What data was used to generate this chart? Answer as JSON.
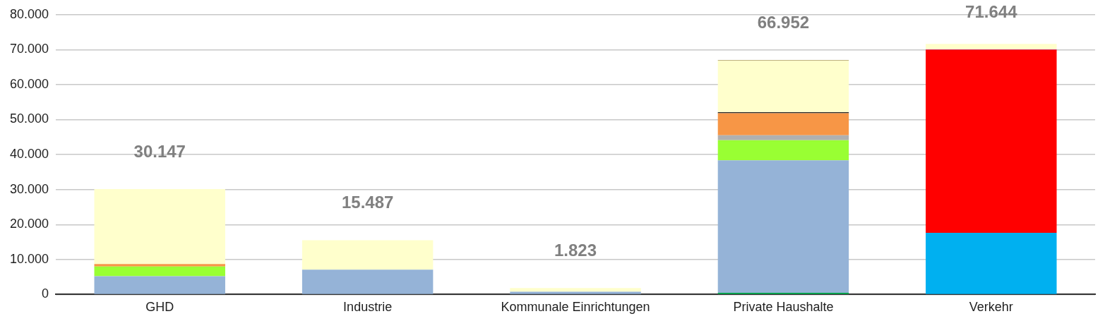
{
  "chart_data": {
    "type": "bar",
    "stacked": true,
    "grid": "y",
    "legend": false,
    "categories": [
      "GHD",
      "Industrie",
      "Kommunale Einrichtungen",
      "Private Haushalte",
      "Verkehr"
    ],
    "series": [
      {
        "color": "#00b050",
        "values": [
          null,
          null,
          null,
          500,
          null
        ]
      },
      {
        "color": "#95b3d7",
        "values": [
          5200,
          7100,
          800,
          37860,
          null
        ]
      },
      {
        "color": "#00b0f0",
        "values": [
          null,
          null,
          null,
          null,
          17640
        ]
      },
      {
        "color": "#ff0000",
        "values": [
          null,
          null,
          null,
          null,
          52300
        ]
      },
      {
        "color": "#c00060",
        "values": [
          null,
          null,
          null,
          null,
          150
        ]
      },
      {
        "color": "#99ff33",
        "values": [
          2800,
          null,
          null,
          5740,
          null
        ]
      },
      {
        "color": "#b0b0b0",
        "values": [
          null,
          null,
          null,
          1400,
          null
        ]
      },
      {
        "color": "#f79646",
        "values": [
          700,
          null,
          null,
          6300,
          null
        ]
      },
      {
        "color": "#262626",
        "values": [
          null,
          null,
          null,
          300,
          null
        ]
      },
      {
        "color": "#ffffcc",
        "values": [
          21447,
          8387,
          1023,
          14750,
          1554
        ]
      },
      {
        "color": "#7f6000",
        "values": [
          null,
          null,
          null,
          102,
          null
        ]
      }
    ],
    "totals": [
      "30.147",
      "15.487",
      "1.823",
      "66.952",
      "71.644"
    ],
    "ylim": [
      0,
      80000
    ],
    "yticks": [
      {
        "value": 0,
        "label": "0"
      },
      {
        "value": 10000,
        "label": "10.000"
      },
      {
        "value": 20000,
        "label": "20.000"
      },
      {
        "value": 30000,
        "label": "30.000"
      },
      {
        "value": 40000,
        "label": "40.000"
      },
      {
        "value": 50000,
        "label": "50.000"
      },
      {
        "value": 60000,
        "label": "60.000"
      },
      {
        "value": 70000,
        "label": "70.000"
      },
      {
        "value": 80000,
        "label": "80.000"
      }
    ]
  }
}
